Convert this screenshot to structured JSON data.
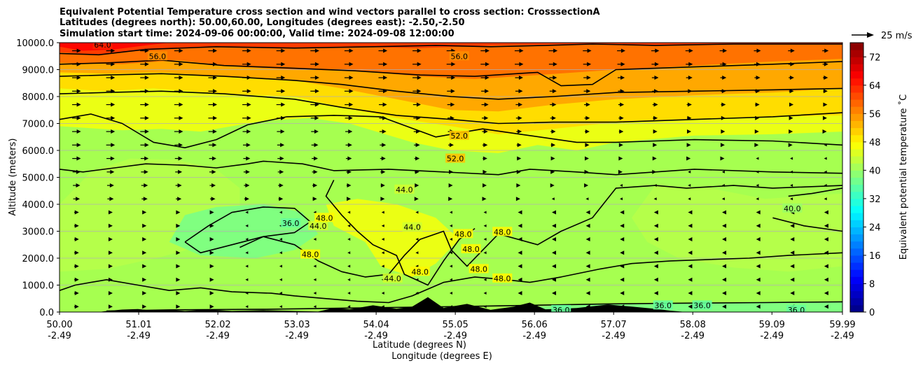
{
  "chart_data": {
    "type": "heatmap",
    "title_lines": [
      "Equivalent Potential Temperature cross section and wind vectors parallel to cross section: CrosssectionA",
      "Latitudes (degrees north): 50.00,60.00, Longitudes (degrees east): -2.50,-2.50",
      "Simulation start time: 2024-09-06 00:00:00, Valid time: 2024-09-08 12:00:00"
    ],
    "xlabel_lines": [
      "Latitude (degrees N)",
      "Longitude (degrees E)"
    ],
    "ylabel": "Altitude (meters)",
    "x_ticks": [
      {
        "lat": "50.00",
        "lon": "-2.49"
      },
      {
        "lat": "51.01",
        "lon": "-2.49"
      },
      {
        "lat": "52.02",
        "lon": "-2.49"
      },
      {
        "lat": "53.03",
        "lon": "-2.49"
      },
      {
        "lat": "54.04",
        "lon": "-2.49"
      },
      {
        "lat": "55.05",
        "lon": "-2.49"
      },
      {
        "lat": "56.06",
        "lon": "-2.49"
      },
      {
        "lat": "57.07",
        "lon": "-2.49"
      },
      {
        "lat": "58.08",
        "lon": "-2.49"
      },
      {
        "lat": "59.09",
        "lon": "-2.49"
      },
      {
        "lat": "59.99",
        "lon": "-2.49"
      }
    ],
    "xlim": [
      50.0,
      59.99
    ],
    "y_ticks": [
      "0.0",
      "1000.0",
      "2000.0",
      "3000.0",
      "4000.0",
      "5000.0",
      "6000.0",
      "7000.0",
      "8000.0",
      "9000.0",
      "10000.0"
    ],
    "ylim": [
      0,
      10000
    ],
    "grid": "horizontal",
    "colorbar": {
      "label": "Equivalent potential temperature ˚C",
      "ticks": [
        "0",
        "8",
        "16",
        "24",
        "32",
        "40",
        "48",
        "56",
        "64",
        "72"
      ],
      "range": [
        0,
        76
      ],
      "colormap": "jet"
    },
    "wind_reference": {
      "label": "25 m/s"
    },
    "contour_levels": [
      36,
      40,
      44,
      48,
      52,
      56,
      60,
      64
    ],
    "contour_labels": [
      {
        "text": "64.0",
        "lat": 50.55,
        "alt": 9920
      },
      {
        "text": "56.0",
        "lat": 51.25,
        "alt": 9500
      },
      {
        "text": "56.0",
        "lat": 55.1,
        "alt": 9500
      },
      {
        "text": "52.0",
        "lat": 55.1,
        "alt": 6550
      },
      {
        "text": "52.0",
        "lat": 55.05,
        "alt": 5700
      },
      {
        "text": "44.0",
        "lat": 54.4,
        "alt": 4550
      },
      {
        "text": "40.0",
        "lat": 59.35,
        "alt": 3850
      },
      {
        "text": "36.0",
        "lat": 52.95,
        "alt": 3300
      },
      {
        "text": "44.0",
        "lat": 53.3,
        "alt": 3200
      },
      {
        "text": "48.0",
        "lat": 53.38,
        "alt": 3500
      },
      {
        "text": "44.0",
        "lat": 54.5,
        "alt": 3150
      },
      {
        "text": "48.0",
        "lat": 55.15,
        "alt": 2900
      },
      {
        "text": "48.0",
        "lat": 55.65,
        "alt": 2980
      },
      {
        "text": "48.0",
        "lat": 53.2,
        "alt": 2140
      },
      {
        "text": "48.0",
        "lat": 55.25,
        "alt": 2340
      },
      {
        "text": "48.0",
        "lat": 55.35,
        "alt": 1600
      },
      {
        "text": "48.0",
        "lat": 54.6,
        "alt": 1500
      },
      {
        "text": "44.0",
        "lat": 54.25,
        "alt": 1250
      },
      {
        "text": "48.0",
        "lat": 55.65,
        "alt": 1250
      },
      {
        "text": "36.0",
        "lat": 56.4,
        "alt": 80
      },
      {
        "text": "36.0",
        "lat": 57.7,
        "alt": 250
      },
      {
        "text": "36.0",
        "lat": 58.2,
        "alt": 250
      },
      {
        "text": "36.0",
        "lat": 59.4,
        "alt": 80
      }
    ]
  }
}
